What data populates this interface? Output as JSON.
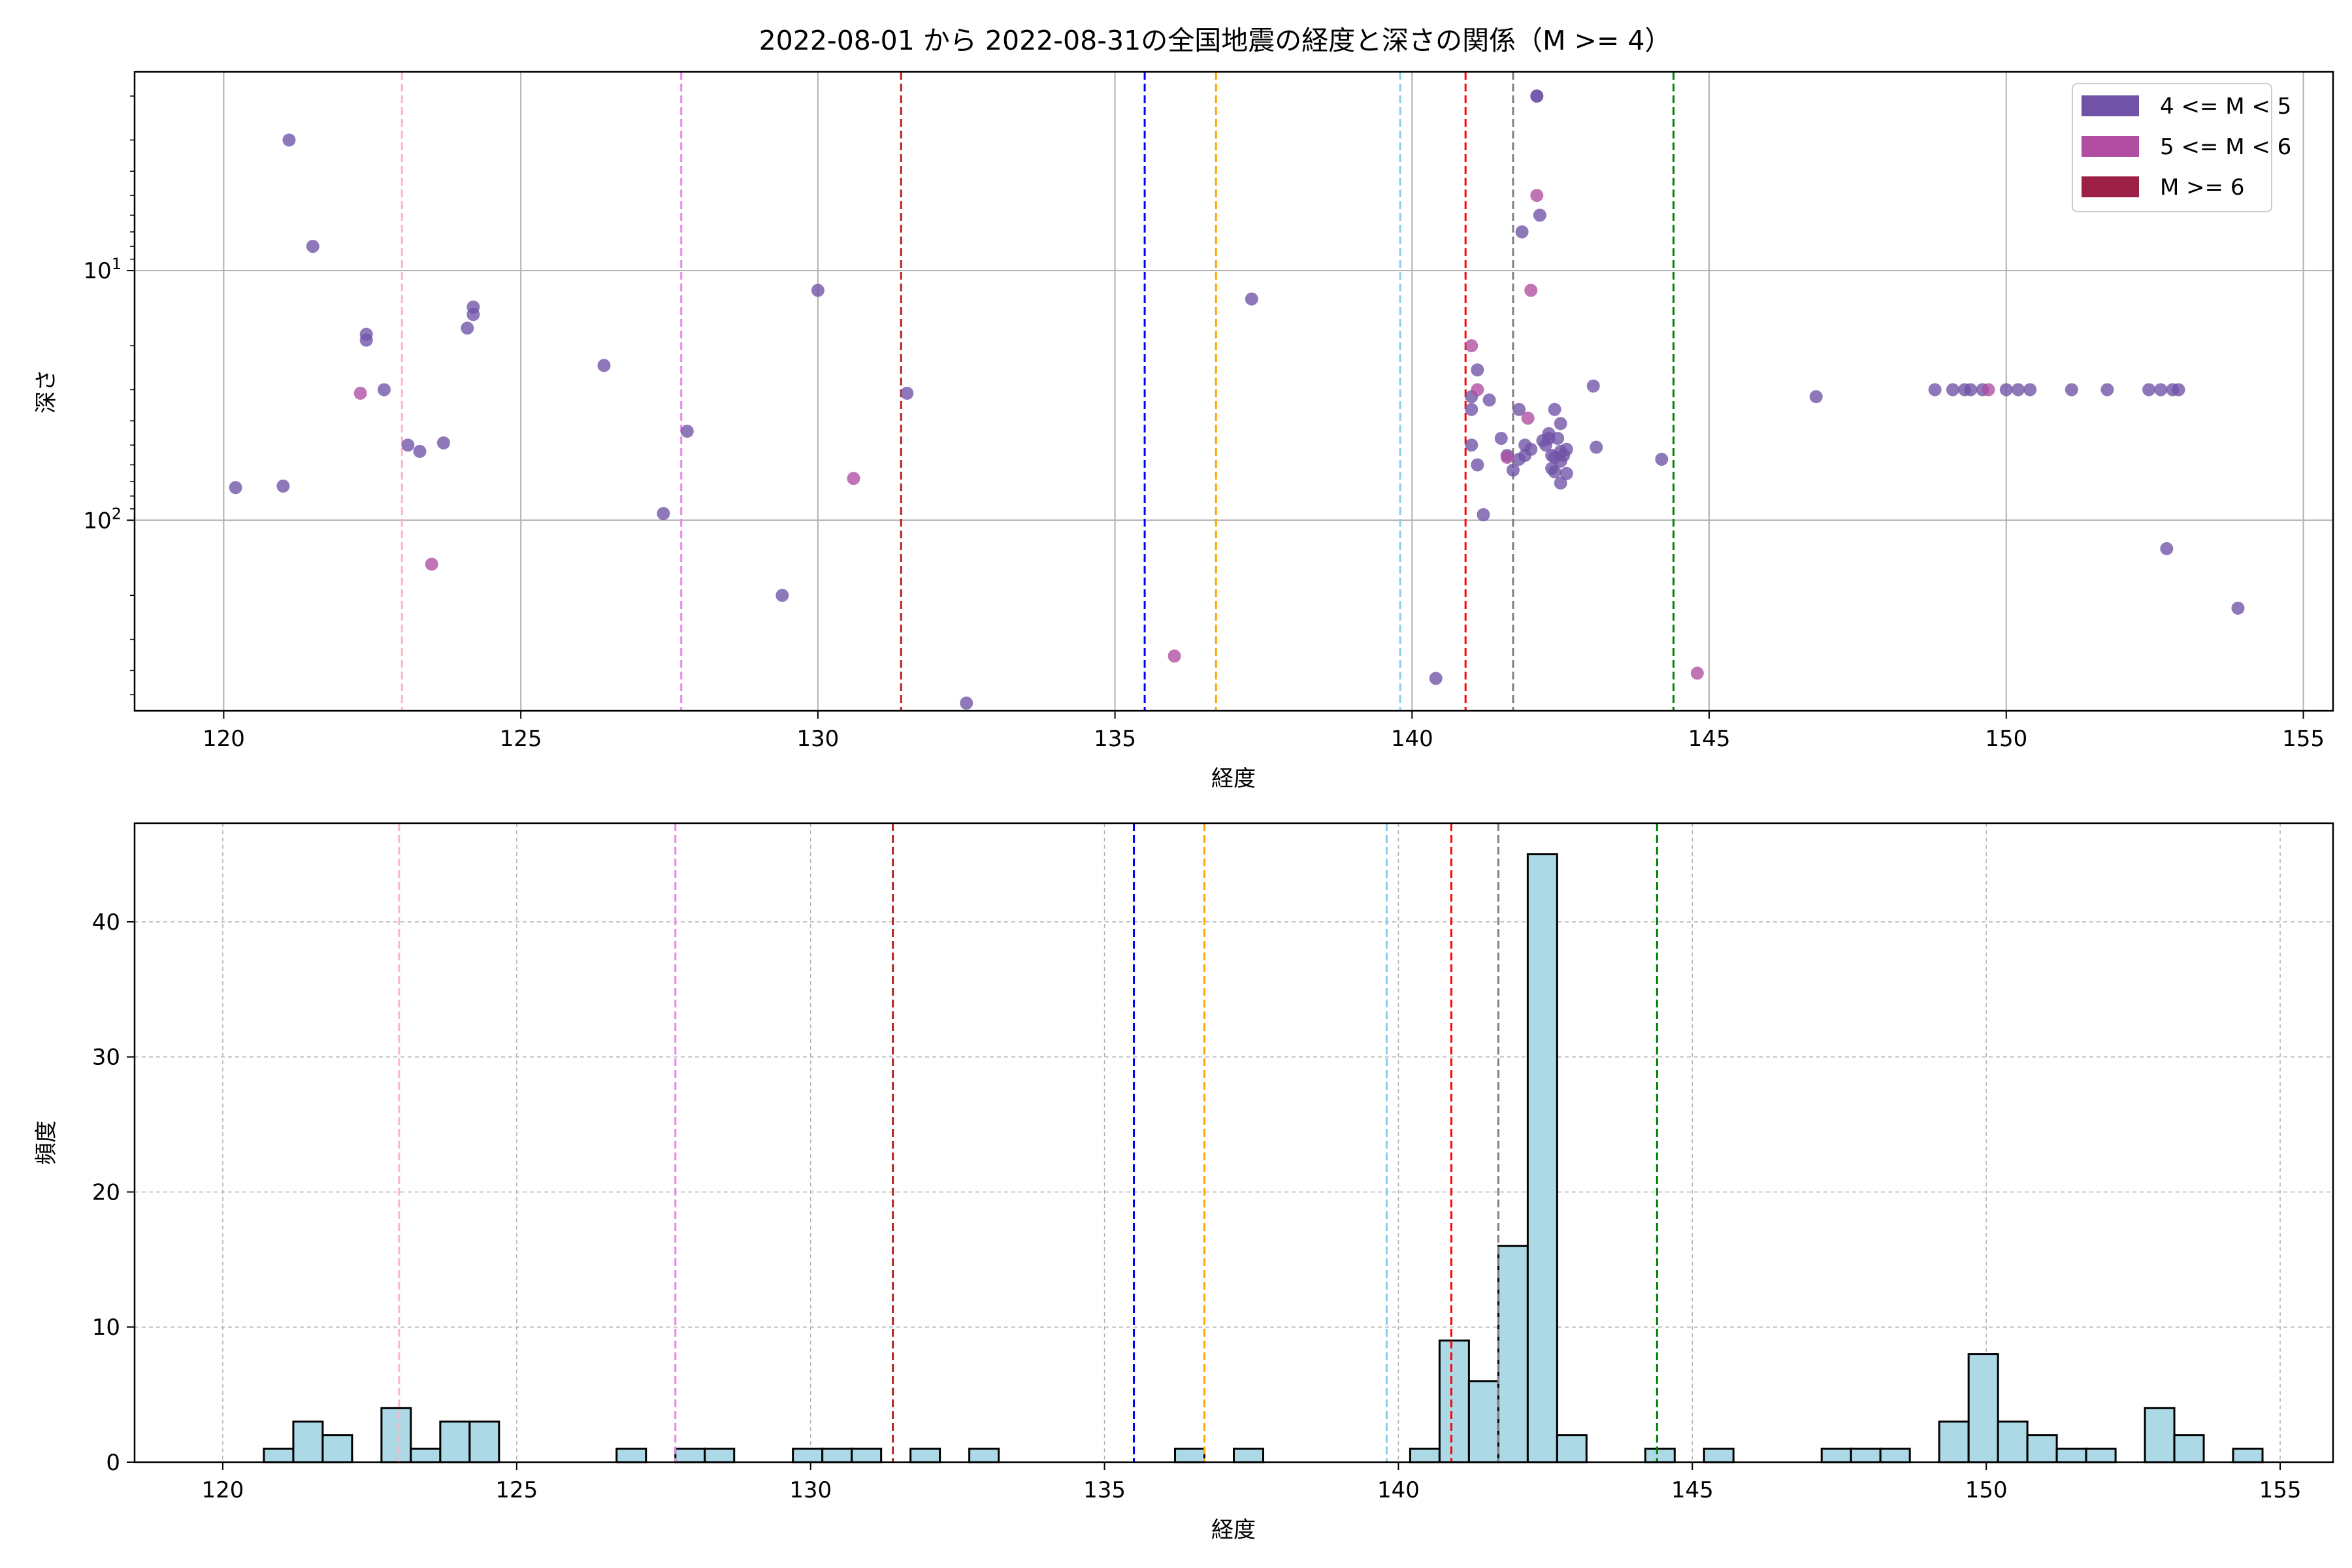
{
  "colors": {
    "m4": "#7052a7",
    "m5": "#b04da0",
    "m6": "#9c1f45",
    "hist_fill": "#add8e6",
    "vlines": [
      "#ffb6c1",
      "#ee82ee",
      "#b22222",
      "#0000ff",
      "#ffa500",
      "#87ceeb",
      "#ff0000",
      "#808080",
      "#008000"
    ]
  },
  "chart_data": [
    {
      "type": "scatter",
      "title": "2022-08-01 から 2022-08-31の全国地震の経度と深さの関係（M >= 4）",
      "xlabel": "経度",
      "ylabel": "深さ",
      "xlim": [
        118.5,
        155.5
      ],
      "ylim": [
        580,
        1.6
      ],
      "yscale": "log",
      "y_inverted": true,
      "xticks": [
        120,
        125,
        130,
        135,
        140,
        145,
        150,
        155
      ],
      "yticks": [
        {
          "value": 10,
          "base": "10",
          "exp": "1"
        },
        {
          "value": 100,
          "base": "10",
          "exp": "2"
        }
      ],
      "grid": true,
      "legend": {
        "placement": "top-right",
        "entries": [
          "4 <= M < 5",
          "5 <= M < 6",
          "M >= 6"
        ]
      },
      "reference_lines_x": [
        123.0,
        127.7,
        131.4,
        135.5,
        136.7,
        139.8,
        140.9,
        141.7,
        144.4
      ],
      "series": [
        {
          "name": "4 <= M < 5",
          "points": [
            [
              120.2,
              74
            ],
            [
              121.0,
              73
            ],
            [
              121.1,
              3
            ],
            [
              121.5,
              8
            ],
            [
              122.4,
              18
            ],
            [
              122.4,
              19
            ],
            [
              122.7,
              30
            ],
            [
              123.1,
              50
            ],
            [
              123.3,
              53
            ],
            [
              123.7,
              49
            ],
            [
              124.1,
              17
            ],
            [
              124.2,
              14
            ],
            [
              124.2,
              15
            ],
            [
              126.4,
              24
            ],
            [
              127.4,
              94
            ],
            [
              127.8,
              44
            ],
            [
              129.4,
              200
            ],
            [
              130.0,
              12
            ],
            [
              131.5,
              31
            ],
            [
              132.5,
              540
            ],
            [
              137.3,
              13
            ],
            [
              140.4,
              430
            ],
            [
              141.0,
              32
            ],
            [
              141.0,
              36
            ],
            [
              141.1,
              25
            ],
            [
              141.0,
              50
            ],
            [
              141.1,
              60
            ],
            [
              141.2,
              95
            ],
            [
              141.3,
              33
            ],
            [
              141.5,
              47
            ],
            [
              141.6,
              55
            ],
            [
              141.7,
              63
            ],
            [
              141.8,
              57
            ],
            [
              141.8,
              36
            ],
            [
              141.85,
              7
            ],
            [
              141.9,
              50
            ],
            [
              141.9,
              55
            ],
            [
              142.0,
              52
            ],
            [
              142.1,
              2
            ],
            [
              142.1,
              2
            ],
            [
              142.15,
              6
            ],
            [
              142.2,
              48
            ],
            [
              142.25,
              50
            ],
            [
              142.3,
              45
            ],
            [
              142.3,
              47
            ],
            [
              142.35,
              62
            ],
            [
              142.35,
              55
            ],
            [
              142.4,
              36
            ],
            [
              142.4,
              56
            ],
            [
              142.4,
              64
            ],
            [
              142.45,
              47
            ],
            [
              142.5,
              53
            ],
            [
              142.5,
              58
            ],
            [
              142.5,
              71
            ],
            [
              142.5,
              41
            ],
            [
              142.55,
              55
            ],
            [
              142.6,
              52
            ],
            [
              142.6,
              65
            ],
            [
              143.05,
              29
            ],
            [
              143.1,
              51
            ],
            [
              144.2,
              57
            ],
            [
              146.8,
              32
            ],
            [
              148.8,
              30
            ],
            [
              149.1,
              30
            ],
            [
              149.3,
              30
            ],
            [
              149.4,
              30
            ],
            [
              149.6,
              30
            ],
            [
              150.0,
              30
            ],
            [
              150.2,
              30
            ],
            [
              150.4,
              30
            ],
            [
              151.1,
              30
            ],
            [
              151.7,
              30
            ],
            [
              152.4,
              30
            ],
            [
              152.6,
              30
            ],
            [
              152.8,
              30
            ],
            [
              152.9,
              30
            ],
            [
              152.7,
              130
            ],
            [
              153.9,
              225
            ]
          ]
        },
        {
          "name": "5 <= M < 6",
          "points": [
            [
              122.3,
              31
            ],
            [
              123.5,
              150
            ],
            [
              130.6,
              68
            ],
            [
              136.0,
              350
            ],
            [
              141.0,
              20
            ],
            [
              141.1,
              30
            ],
            [
              141.95,
              39
            ],
            [
              142.0,
              12
            ],
            [
              142.1,
              5
            ],
            [
              141.6,
              56
            ],
            [
              149.7,
              30
            ],
            [
              144.8,
              410
            ]
          ]
        },
        {
          "name": "M >= 6",
          "points": []
        }
      ]
    },
    {
      "type": "bar",
      "title": "",
      "xlabel": "経度",
      "ylabel": "頻度",
      "xlim": [
        118.5,
        155.9
      ],
      "ylim": [
        0,
        47.3
      ],
      "xticks": [
        120,
        125,
        130,
        135,
        140,
        145,
        150,
        155
      ],
      "yticks": [
        0,
        10,
        20,
        30,
        40
      ],
      "grid": true,
      "bin_width": 0.5,
      "bins": [
        [
          120.7,
          1
        ],
        [
          121.2,
          3
        ],
        [
          121.7,
          2
        ],
        [
          122.7,
          4
        ],
        [
          123.2,
          1
        ],
        [
          123.7,
          3
        ],
        [
          124.2,
          3
        ],
        [
          126.7,
          1
        ],
        [
          127.7,
          1
        ],
        [
          128.2,
          1
        ],
        [
          129.7,
          1
        ],
        [
          130.2,
          1
        ],
        [
          130.7,
          1
        ],
        [
          131.7,
          1
        ],
        [
          132.7,
          1
        ],
        [
          136.2,
          1
        ],
        [
          137.2,
          1
        ],
        [
          140.2,
          1
        ],
        [
          140.7,
          9
        ],
        [
          141.2,
          6
        ],
        [
          141.7,
          16
        ],
        [
          142.2,
          45
        ],
        [
          142.7,
          2
        ],
        [
          144.2,
          1
        ],
        [
          145.2,
          1
        ],
        [
          147.2,
          1
        ],
        [
          147.7,
          1
        ],
        [
          148.2,
          1
        ],
        [
          149.2,
          3
        ],
        [
          149.7,
          8
        ],
        [
          150.2,
          3
        ],
        [
          150.7,
          2
        ],
        [
          151.2,
          1
        ],
        [
          151.7,
          1
        ],
        [
          152.7,
          4
        ],
        [
          153.2,
          2
        ],
        [
          154.2,
          1
        ]
      ],
      "reference_lines_x": [
        123.0,
        127.7,
        131.4,
        135.5,
        136.7,
        139.8,
        140.9,
        141.7,
        144.4
      ]
    }
  ]
}
